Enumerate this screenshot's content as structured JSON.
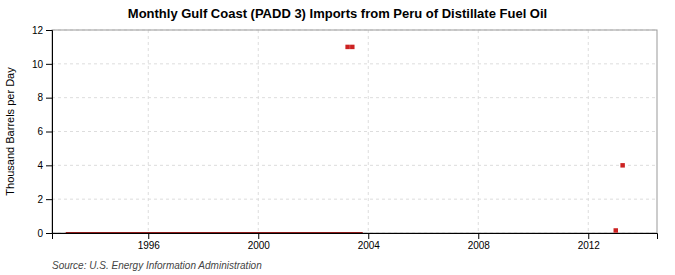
{
  "chart_data": {
    "type": "scatter",
    "title": "Monthly Gulf Coast (PADD 3) Imports from Peru of Distillate Fuel Oil",
    "ylabel": "Thousand Barrels per Day",
    "source": "Source: U.S. Energy Information Administration",
    "series": [
      {
        "type": "line",
        "color": "#8b1a1a",
        "x": [
          1993.0,
          2003.8
        ],
        "values": [
          0,
          0
        ]
      },
      {
        "type": "scatter",
        "color": "#cc2222",
        "marker": "square",
        "x": [
          2003.25,
          2003.42,
          2013.25,
          2013.0
        ],
        "values": [
          11,
          11,
          4,
          0.15
        ]
      }
    ],
    "xlim": [
      1992.5,
      2014.5
    ],
    "xticks": [
      1996,
      2000,
      2004,
      2008,
      2012
    ],
    "ylim": [
      0,
      12
    ],
    "yticks": [
      0,
      2,
      4,
      6,
      8,
      10,
      12
    ],
    "grid": true
  }
}
